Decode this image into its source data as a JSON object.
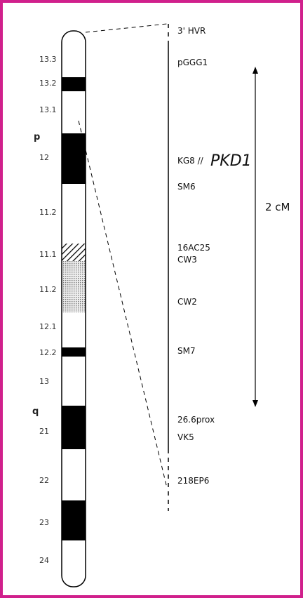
{
  "chromosome": {
    "p_arm": "p",
    "q_arm": "q",
    "bands": [
      "13.3",
      "13.2",
      "13.1",
      "12",
      "11.2",
      "11.1",
      "11.2",
      "12.1",
      "12.2",
      "13",
      "21",
      "22",
      "23",
      "24"
    ]
  },
  "markers": [
    "3' HVR",
    "pGGG1",
    "KG8 //",
    "SM6",
    "16AC25",
    "CW3",
    "CW2",
    "SM7",
    "26.6prox",
    "VK5",
    "218EP6"
  ],
  "gene": "PKD1",
  "scale": "2 cM"
}
